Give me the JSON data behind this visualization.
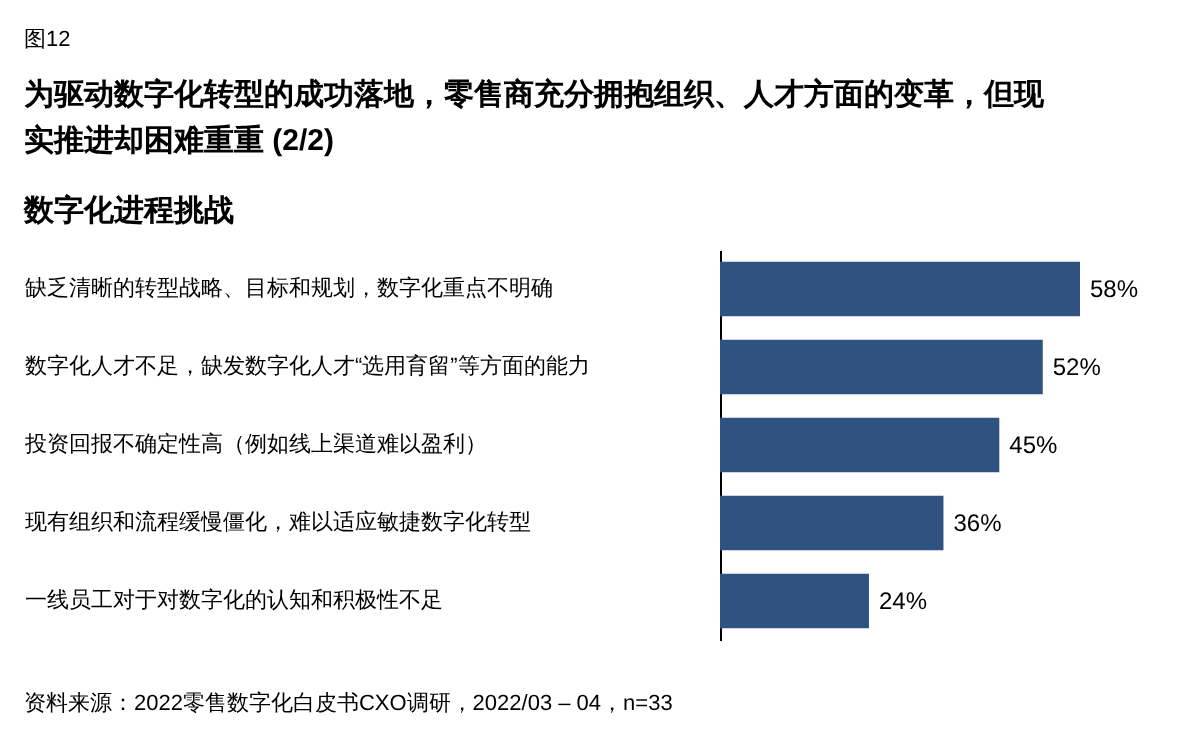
{
  "chart_data": {
    "type": "bar",
    "orientation": "horizontal",
    "title": "为驱动数字化转型的成功落地，零售商充分拥抱组织、人才方面的变革，但现实推进却困难重重 (2/2)",
    "subtitle": "数字化进程挑战",
    "categories": [
      "缺乏清晰的转型战略、目标和规划，数字化重点不明确",
      "数字化人才不足，缺发数字化人才“选用育留”等方面的能力",
      "投资回报不确定性高（例如线上渠道难以盈利）",
      "现有组织和流程缓慢僵化，难以适应敏捷数字化转型",
      "一线员工对于对数字化的认知和积极性不足"
    ],
    "values": [
      58,
      52,
      45,
      36,
      24
    ],
    "value_labels": [
      "58%",
      "52%",
      "45%",
      "36%",
      "24%"
    ],
    "color": "#2f5280",
    "annotations": [
      "图12",
      "资料来源：2022零售数字化白皮书CXO调研，2022/03 – 04，n=33"
    ]
  }
}
